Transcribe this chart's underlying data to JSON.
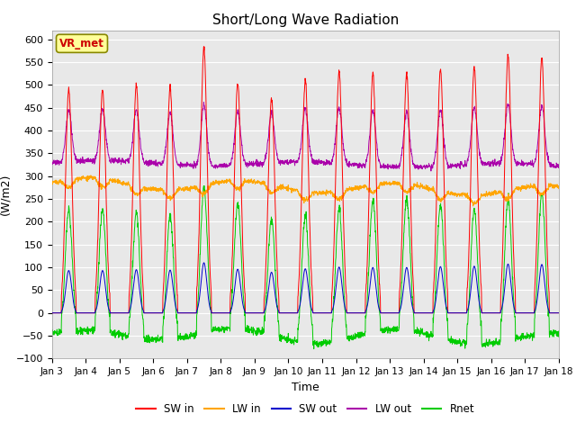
{
  "title": "Short/Long Wave Radiation",
  "xlabel": "Time",
  "ylabel": "(W/m2)",
  "ylim": [
    -100,
    620
  ],
  "yticks": [
    -100,
    -50,
    0,
    50,
    100,
    150,
    200,
    250,
    300,
    350,
    400,
    450,
    500,
    550,
    600
  ],
  "xtick_labels": [
    "Jan 3",
    "Jan 4",
    "Jan 5",
    "Jan 6",
    "Jan 7",
    "Jan 8",
    "Jan 9",
    "Jan 10",
    "Jan 11",
    "Jan 12",
    "Jan 13",
    "Jan 14",
    "Jan 15",
    "Jan 16",
    "Jan 17",
    "Jan 18"
  ],
  "legend_labels": [
    "SW in",
    "LW in",
    "SW out",
    "LW out",
    "Rnet"
  ],
  "colors": {
    "SW_in": "#ff0000",
    "LW_in": "#ffa500",
    "SW_out": "#0000cc",
    "LW_out": "#aa00aa",
    "Rnet": "#00cc00"
  },
  "annotation_text": "VR_met",
  "annotation_color": "#cc0000",
  "annotation_bg": "#ffff99",
  "annotation_border": "#888800",
  "n_days": 15,
  "bg_color": "#e8e8e8",
  "title_fontsize": 11,
  "axis_fontsize": 9
}
